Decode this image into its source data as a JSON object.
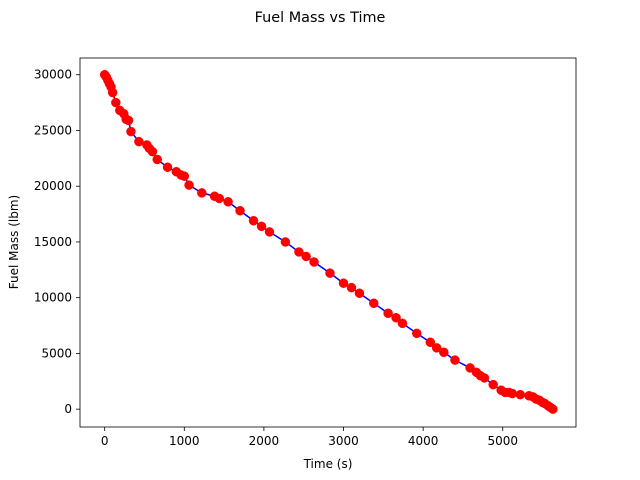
{
  "chart_data": {
    "type": "line",
    "title": "Fuel Mass vs Time",
    "xlabel": "Time (s)",
    "ylabel": "Fuel Mass (lbm)",
    "xlim": [
      -310,
      5920
    ],
    "ylim": [
      -1600,
      31500
    ],
    "xticks": [
      0,
      1000,
      2000,
      3000,
      4000,
      5000
    ],
    "yticks": [
      0,
      5000,
      10000,
      15000,
      20000,
      25000,
      30000
    ],
    "grid": false,
    "line_color": "#0000ff",
    "marker_color": "#ff0000",
    "series": [
      {
        "x": [
          0,
          20,
          40,
          60,
          80,
          100,
          140,
          190,
          240,
          270,
          300,
          330,
          430,
          530,
          560,
          600,
          660,
          790,
          900,
          960,
          1000,
          1060,
          1220,
          1380,
          1440,
          1550,
          1700,
          1870,
          1970,
          2070,
          2270,
          2440,
          2530,
          2630,
          2830,
          3000,
          3100,
          3200,
          3380,
          3560,
          3660,
          3740,
          3920,
          4090,
          4170,
          4260,
          4400,
          4590,
          4670,
          4720,
          4770,
          4880,
          4980,
          5030,
          5080,
          5120,
          5220,
          5330,
          5380,
          5420,
          5460,
          5500,
          5530,
          5570,
          5600,
          5630
        ],
        "y": [
          30000,
          29800,
          29500,
          29200,
          28900,
          28400,
          27500,
          26800,
          26500,
          26000,
          25900,
          24900,
          24000,
          23700,
          23400,
          23100,
          22400,
          21700,
          21300,
          21000,
          20900,
          20100,
          19400,
          19100,
          18900,
          18600,
          17800,
          16900,
          16400,
          15900,
          15000,
          14100,
          13700,
          13200,
          12200,
          11300,
          10900,
          10400,
          9500,
          8600,
          8200,
          7700,
          6800,
          6000,
          5500,
          5100,
          4400,
          3700,
          3300,
          3000,
          2800,
          2200,
          1700,
          1500,
          1500,
          1400,
          1300,
          1200,
          1100,
          900,
          800,
          600,
          500,
          300,
          150,
          0
        ]
      }
    ]
  }
}
